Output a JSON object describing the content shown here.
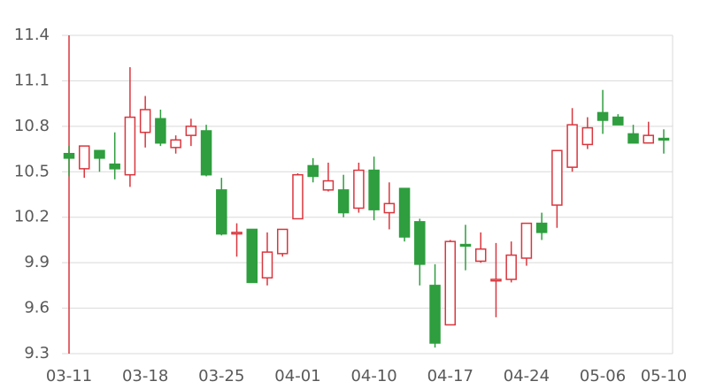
{
  "chart_data": {
    "type": "candlestick",
    "categories": [
      "03-11",
      null,
      null,
      null,
      null,
      "03-18",
      null,
      null,
      null,
      null,
      "03-25",
      null,
      null,
      null,
      null,
      "04-01",
      null,
      null,
      null,
      null,
      "04-10",
      null,
      null,
      null,
      null,
      "04-17",
      null,
      null,
      null,
      null,
      "04-24",
      null,
      null,
      null,
      null,
      "05-06",
      null,
      null,
      null,
      "05-10"
    ],
    "open": [
      10.62,
      10.52,
      10.64,
      10.55,
      10.48,
      10.76,
      10.85,
      10.66,
      10.74,
      10.77,
      10.38,
      10.09,
      10.12,
      9.8,
      9.96,
      10.19,
      10.54,
      10.38,
      10.38,
      10.26,
      10.51,
      10.23,
      10.39,
      10.17,
      9.75,
      9.49,
      10.02,
      9.91,
      9.78,
      9.79,
      9.93,
      10.16,
      10.28,
      10.53,
      10.68,
      10.89,
      10.86,
      10.75,
      10.69,
      10.72
    ],
    "high": [
      10.67,
      10.67,
      10.64,
      10.76,
      11.19,
      11.0,
      10.91,
      10.74,
      10.85,
      10.81,
      10.46,
      10.16,
      10.12,
      10.1,
      10.12,
      10.49,
      10.59,
      10.56,
      10.48,
      10.56,
      10.6,
      10.43,
      10.39,
      10.19,
      9.89,
      10.05,
      10.15,
      10.1,
      10.03,
      10.04,
      10.16,
      10.23,
      10.64,
      10.92,
      10.86,
      11.04,
      10.88,
      10.81,
      10.83,
      10.78
    ],
    "low": [
      10.47,
      10.46,
      10.5,
      10.45,
      10.4,
      10.66,
      10.67,
      10.62,
      10.67,
      10.47,
      10.08,
      9.94,
      9.77,
      9.75,
      9.94,
      10.19,
      10.43,
      10.37,
      10.2,
      10.23,
      10.18,
      10.12,
      10.04,
      9.75,
      9.34,
      9.49,
      9.85,
      9.9,
      9.54,
      9.77,
      9.88,
      10.05,
      10.13,
      10.5,
      10.65,
      10.75,
      10.81,
      10.69,
      10.69,
      10.62
    ],
    "close": [
      10.59,
      10.67,
      10.59,
      10.52,
      10.86,
      10.91,
      10.69,
      10.71,
      10.8,
      10.48,
      10.09,
      10.1,
      9.77,
      9.97,
      10.12,
      10.48,
      10.47,
      10.44,
      10.23,
      10.51,
      10.25,
      10.29,
      10.07,
      9.89,
      9.37,
      10.04,
      10.01,
      9.99,
      9.79,
      9.95,
      10.16,
      10.1,
      10.64,
      10.81,
      10.79,
      10.84,
      10.81,
      10.69,
      10.74,
      10.71
    ],
    "up_color": "#d9363e",
    "down_color": "#2e9e3e",
    "ylim": [
      9.3,
      11.4
    ],
    "yticks": [
      9.3,
      9.6,
      9.9,
      10.2,
      10.5,
      10.8,
      11.1,
      11.4
    ],
    "grid": true
  }
}
